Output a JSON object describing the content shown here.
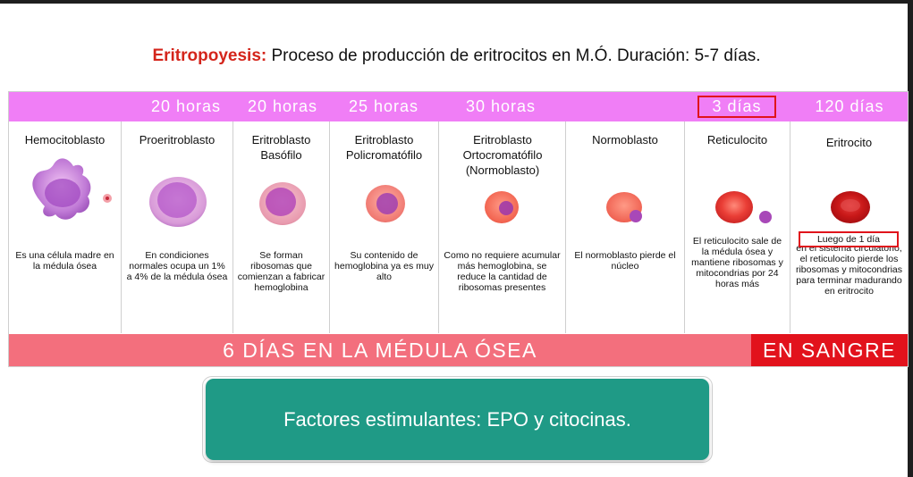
{
  "headline": {
    "term": "Eritropoyesis:",
    "text": " Proceso de producción de eritrocitos en M.Ó. Duración: 5-7 días."
  },
  "stages": [
    {
      "id": "hemocitoblasto",
      "duration": "",
      "name": "Hemocitoblasto",
      "description": "Es una célula madre en la médula ósea"
    },
    {
      "id": "proeritroblasto",
      "duration": "20 horas",
      "name": "Proeritroblasto",
      "description": "En condiciones normales ocupa un 1% a 4% de la médula ósea"
    },
    {
      "id": "eritroblasto-basofilo",
      "duration": "20 horas",
      "name": "Eritroblasto Basófilo",
      "description": "Se forman ribosomas que comienzan a fabricar hemoglobina"
    },
    {
      "id": "eritroblasto-policromatofilo",
      "duration": "25 horas",
      "name": "Eritroblasto Policromatófilo",
      "description": "Su contenido de hemoglobina ya es muy alto"
    },
    {
      "id": "eritroblasto-ortocromatofilo",
      "duration": "30 horas",
      "name": "Eritroblasto Ortocromatófilo (Normoblasto)",
      "description": "Como no requiere acumular más hemoglobina, se reduce la cantidad de ribosomas presentes"
    },
    {
      "id": "normoblasto",
      "duration": "",
      "name": "Normoblasto",
      "description": "El normoblasto pierde el núcleo"
    },
    {
      "id": "reticulocito",
      "duration": "3 días",
      "name": "Reticulocito",
      "description": "El reticulocito sale de la médula ósea y mantiene ribosomas y mitocondrias por 24 horas más"
    },
    {
      "id": "eritrocito",
      "duration": "120 días",
      "name": "Eritrocito",
      "description": "en el sistema circulatorio, el reticulocito pierde los ribosomas y mitocondrias para terminar madurando en eritrocito"
    }
  ],
  "callout": "Luego de 1 día",
  "footer": {
    "bone_marrow": "6 DÍAS EN LA MÉDULA ÓSEA",
    "blood": "EN SANGRE"
  },
  "factors": "Factores estimulantes: EPO y citocinas.",
  "colors": {
    "duration_band": "#f07ef6",
    "marrow_band": "#f36f7d",
    "blood_band": "#e2121c",
    "highlight_box": "#e0141b",
    "factors_box": "#1f9a86",
    "term": "#d4251b"
  }
}
